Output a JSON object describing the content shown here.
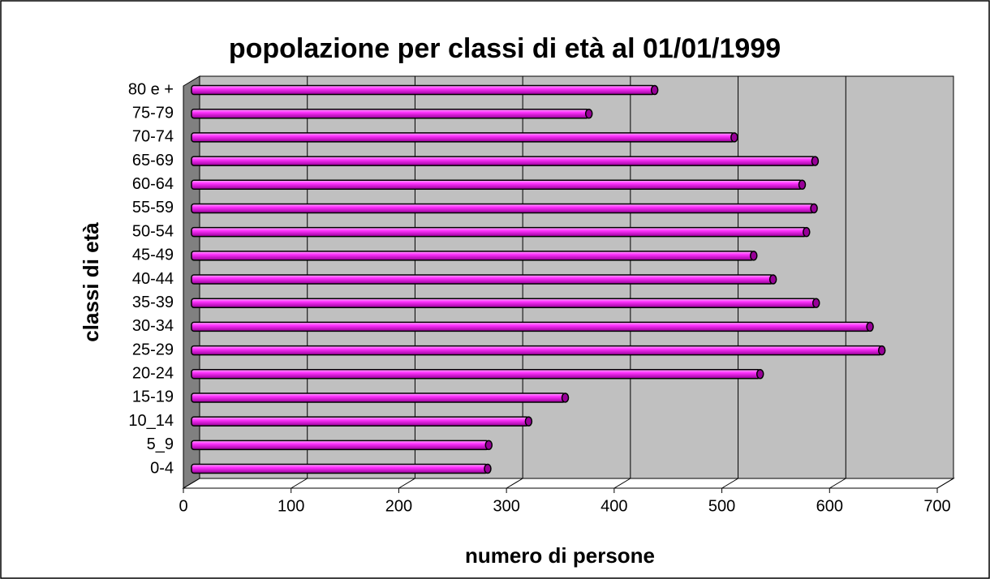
{
  "chart_data": {
    "type": "bar",
    "orientation": "horizontal",
    "title": "popolazione per classi di età al 01/01/1999",
    "x_label": "numero di persone",
    "y_label": "classi di età",
    "categories": [
      "0-4",
      "5_9",
      "10_14",
      "15-19",
      "20-24",
      "25-29",
      "30-34",
      "35-39",
      "40-44",
      "45-49",
      "50-54",
      "55-59",
      "60-64",
      "65-69",
      "70-74",
      "75-79",
      "80 e +"
    ],
    "values": [
      275,
      276,
      313,
      347,
      528,
      641,
      630,
      580,
      540,
      522,
      571,
      578,
      567,
      579,
      504,
      369,
      430
    ],
    "color": "#ff00ff",
    "xlim": [
      0,
      700
    ],
    "xticks": [
      0,
      100,
      200,
      300,
      400,
      500,
      600,
      700
    ],
    "grid": true
  }
}
